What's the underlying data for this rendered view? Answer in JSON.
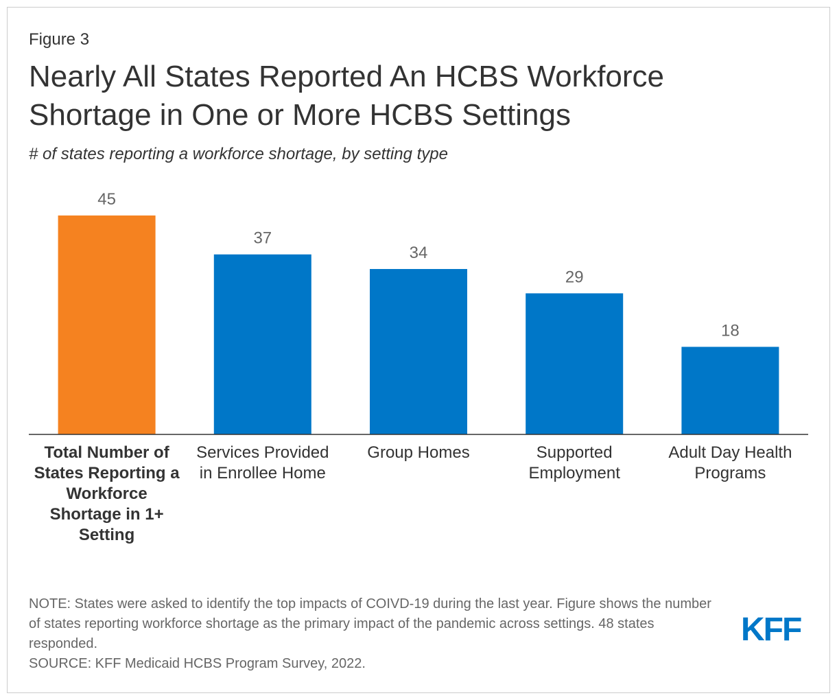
{
  "figure_label": "Figure 3",
  "chart_data": {
    "type": "bar",
    "title": "Nearly All States Reported An HCBS Workforce Shortage in One or More HCBS Settings",
    "subtitle": "# of states reporting a workforce shortage, by setting type",
    "categories": [
      "Total Number of States Reporting a Workforce Shortage in 1+ Setting",
      "Services Provided in Enrollee Home",
      "Group Homes",
      "Supported Employment",
      "Adult Day Health Programs"
    ],
    "values": [
      45,
      37,
      34,
      29,
      18
    ],
    "colors": [
      "#f58220",
      "#0077c8",
      "#0077c8",
      "#0077c8",
      "#0077c8"
    ]
  },
  "note": "NOTE: States were asked to identify the top impacts of COIVD-19 during the last year. Figure shows the number of states reporting workforce shortage as the primary impact of the pandemic across settings. 48 states responded.",
  "source": "SOURCE: KFF Medicaid HCBS Program Survey, 2022.",
  "logo": "KFF"
}
